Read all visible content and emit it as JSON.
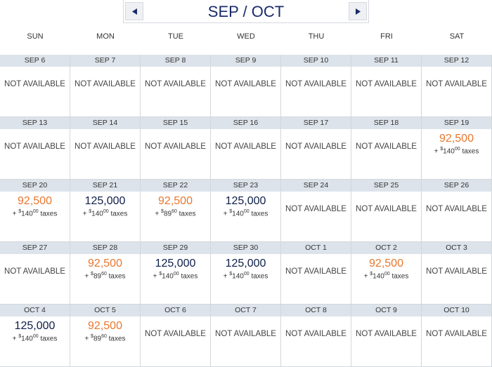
{
  "header": {
    "title": "SEP / OCT"
  },
  "weekdays": [
    "SUN",
    "MON",
    "TUE",
    "WED",
    "THU",
    "FRI",
    "SAT"
  ],
  "plus": "+",
  "currency": "$",
  "tax_label": "taxes",
  "weeks": [
    [
      {
        "date": "SEP 6",
        "status": "NOT AVAILABLE"
      },
      {
        "date": "SEP 7",
        "status": "NOT AVAILABLE"
      },
      {
        "date": "SEP 8",
        "status": "NOT AVAILABLE"
      },
      {
        "date": "SEP 9",
        "status": "NOT AVAILABLE"
      },
      {
        "date": "SEP 10",
        "status": "NOT AVAILABLE"
      },
      {
        "date": "SEP 11",
        "status": "NOT AVAILABLE"
      },
      {
        "date": "SEP 12",
        "status": "NOT AVAILABLE"
      }
    ],
    [
      {
        "date": "SEP 13",
        "status": "NOT AVAILABLE"
      },
      {
        "date": "SEP 14",
        "status": "NOT AVAILABLE"
      },
      {
        "date": "SEP 15",
        "status": "NOT AVAILABLE"
      },
      {
        "date": "SEP 16",
        "status": "NOT AVAILABLE"
      },
      {
        "date": "SEP 17",
        "status": "NOT AVAILABLE"
      },
      {
        "date": "SEP 18",
        "status": "NOT AVAILABLE"
      },
      {
        "date": "SEP 19",
        "miles": "92,500",
        "tax": "140",
        "tax_cents": "00",
        "color": "#e8772e"
      }
    ],
    [
      {
        "date": "SEP 20",
        "miles": "92,500",
        "tax": "140",
        "tax_cents": "00",
        "color": "#e8772e"
      },
      {
        "date": "SEP 21",
        "miles": "125,000",
        "tax": "140",
        "tax_cents": "00",
        "color": "#0d1e47"
      },
      {
        "date": "SEP 22",
        "miles": "92,500",
        "tax": "89",
        "tax_cents": "60",
        "color": "#e8772e"
      },
      {
        "date": "SEP 23",
        "miles": "125,000",
        "tax": "140",
        "tax_cents": "00",
        "color": "#0d1e47"
      },
      {
        "date": "SEP 24",
        "status": "NOT AVAILABLE"
      },
      {
        "date": "SEP 25",
        "status": "NOT AVAILABLE"
      },
      {
        "date": "SEP 26",
        "status": "NOT AVAILABLE"
      }
    ],
    [
      {
        "date": "SEP 27",
        "status": "NOT AVAILABLE"
      },
      {
        "date": "SEP 28",
        "miles": "92,500",
        "tax": "89",
        "tax_cents": "60",
        "color": "#e8772e"
      },
      {
        "date": "SEP 29",
        "miles": "125,000",
        "tax": "140",
        "tax_cents": "00",
        "color": "#0d1e47"
      },
      {
        "date": "SEP 30",
        "miles": "125,000",
        "tax": "140",
        "tax_cents": "00",
        "color": "#0d1e47"
      },
      {
        "date": "OCT 1",
        "status": "NOT AVAILABLE"
      },
      {
        "date": "OCT 2",
        "miles": "92,500",
        "tax": "140",
        "tax_cents": "00",
        "color": "#e8772e"
      },
      {
        "date": "OCT 3",
        "status": "NOT AVAILABLE"
      }
    ],
    [
      {
        "date": "OCT 4",
        "miles": "125,000",
        "tax": "140",
        "tax_cents": "00",
        "color": "#0d1e47"
      },
      {
        "date": "OCT 5",
        "miles": "92,500",
        "tax": "89",
        "tax_cents": "60",
        "color": "#e8772e"
      },
      {
        "date": "OCT 6",
        "status": "NOT AVAILABLE"
      },
      {
        "date": "OCT 7",
        "status": "NOT AVAILABLE"
      },
      {
        "date": "OCT 8",
        "status": "NOT AVAILABLE"
      },
      {
        "date": "OCT 9",
        "status": "NOT AVAILABLE"
      },
      {
        "date": "OCT 10",
        "status": "NOT AVAILABLE"
      }
    ]
  ]
}
